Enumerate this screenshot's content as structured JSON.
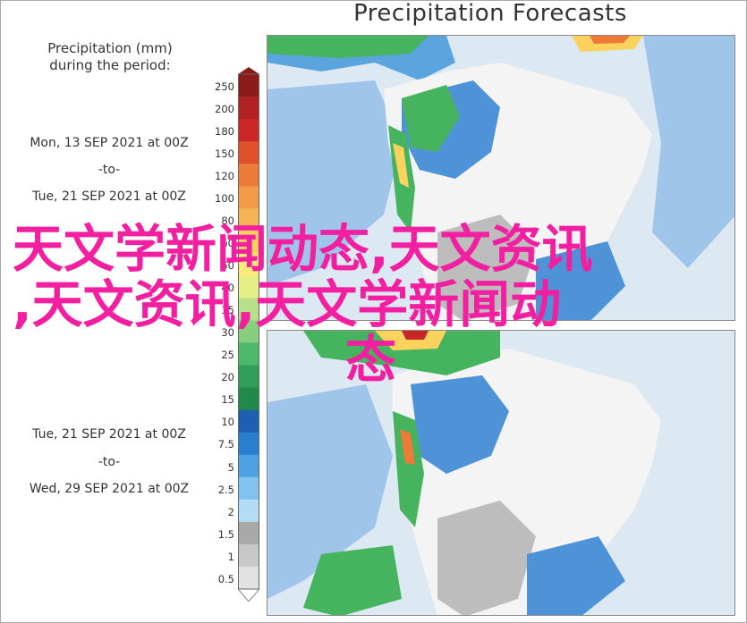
{
  "title": "Precipitation Forecasts",
  "legend": {
    "heading_line1": "Precipitation (mm)",
    "heading_line2": "during the period:",
    "period1": {
      "start": "Mon, 13 SEP 2021 at 00Z",
      "sep": "-to-",
      "end": "Tue, 21 SEP 2021 at 00Z"
    },
    "period2": {
      "start": "Tue, 21 SEP 2021 at 00Z",
      "sep": "-to-",
      "end": "Wed, 29 SEP 2021 at 00Z"
    },
    "ticks_top": [
      "250",
      "200",
      "180",
      "150",
      "120",
      "100",
      "80",
      "60",
      "50",
      "40",
      "35",
      "30",
      "25",
      "20",
      "15",
      "10",
      "7.5",
      "5",
      "2.5",
      "2",
      "1.5",
      "1",
      "0.5"
    ],
    "ticks_visible": [
      "250",
      "200",
      "180",
      "150",
      "120",
      "100",
      "80",
      "60",
      "50",
      "40",
      "35",
      "30",
      "25",
      "20",
      "15",
      "10",
      "7.5",
      "5",
      "2.5",
      "2",
      "1.5",
      "1",
      "0.5"
    ],
    "colors": [
      "#8b1a1a",
      "#b22222",
      "#cd2626",
      "#e0502a",
      "#ee7a3a",
      "#f29a48",
      "#f7b454",
      "#fbd25e",
      "#fde978",
      "#e6ee88",
      "#b8e08a",
      "#86cf7e",
      "#4cb86a",
      "#2f9e58",
      "#218a4a",
      "#1d5fb0",
      "#2b7fd0",
      "#4ea2e4",
      "#82c2f0",
      "#b4dcf6",
      "#a9a9a9",
      "#c8c8c8",
      "#e2e2e2"
    ]
  },
  "map_colors": {
    "ocean_light": "#dce8f2",
    "ocean": "#7fb3e0",
    "land_light": "#f4f4f4",
    "land_gray": "#bdbdbd",
    "wet_blue": "#4e93d8",
    "green": "#46b35e",
    "yellow": "#fbd25e",
    "orange": "#ee7a3a",
    "red": "#c62626"
  },
  "watermark": {
    "line1": "天文学新闻动态,天文资讯",
    "line2": ",天文资讯,天文学新闻动",
    "line3": "态"
  }
}
